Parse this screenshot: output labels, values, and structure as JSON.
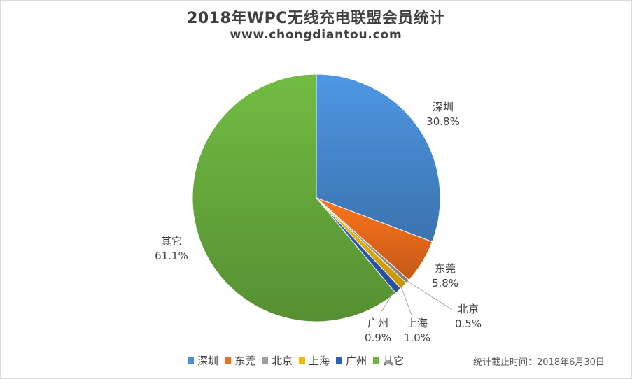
{
  "chart_data": {
    "type": "pie",
    "title": "2018年WPC无线充电联盟会员统计",
    "subtitle": "www.chongdiantou.com",
    "categories": [
      "深圳",
      "东莞",
      "北京",
      "上海",
      "广州",
      "其它"
    ],
    "values": [
      30.8,
      5.8,
      0.5,
      1.0,
      0.9,
      61.1
    ],
    "value_labels": [
      "30.8%",
      "5.8%",
      "0.5%",
      "1.0%",
      "0.9%",
      "61.1%"
    ],
    "colors": [
      "#4a90d9",
      "#f26f1c",
      "#9e9e9e",
      "#f5b800",
      "#2e5fbf",
      "#6cb33f"
    ],
    "legend_position": "bottom",
    "start_angle": "12 o'clock",
    "direction": "clockwise"
  },
  "footer_note": "统计截止时间：2018年6月30日"
}
